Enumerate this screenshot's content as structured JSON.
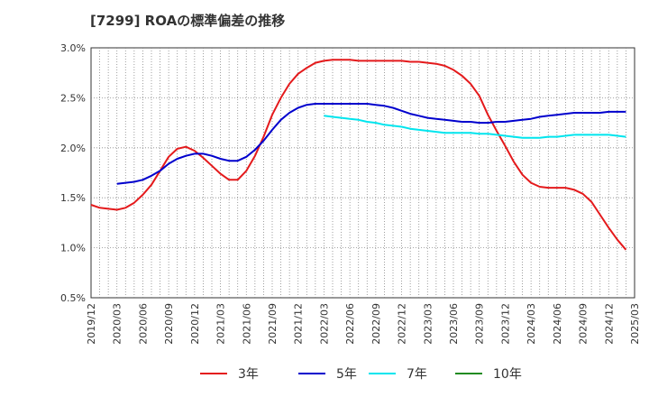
{
  "chart_data": {
    "type": "line",
    "title": "[7299]  ROAの標準偏差の推移",
    "xlabel": "",
    "ylabel": "",
    "y_ticks": [
      "0.5%",
      "1.0%",
      "1.5%",
      "2.0%",
      "2.5%",
      "3.0%"
    ],
    "ylim": [
      0.5,
      3.0
    ],
    "x_ticks": [
      "2019/12",
      "2020/03",
      "2020/06",
      "2020/09",
      "2020/12",
      "2021/03",
      "2021/06",
      "2021/09",
      "2021/12",
      "2022/03",
      "2022/06",
      "2022/09",
      "2022/12",
      "2023/03",
      "2023/06",
      "2023/09",
      "2023/12",
      "2024/03",
      "2024/06",
      "2024/09",
      "2024/12",
      "2025/03"
    ],
    "grid": true,
    "legend_position": "bottom",
    "series": [
      {
        "name": "3年",
        "color": "#e41a1c",
        "points": [
          [
            "2019/12",
            1.43
          ],
          [
            "2020/01",
            1.4
          ],
          [
            "2020/02",
            1.39
          ],
          [
            "2020/03",
            1.38
          ],
          [
            "2020/04",
            1.4
          ],
          [
            "2020/05",
            1.45
          ],
          [
            "2020/06",
            1.53
          ],
          [
            "2020/07",
            1.63
          ],
          [
            "2020/08",
            1.77
          ],
          [
            "2020/09",
            1.91
          ],
          [
            "2020/10",
            1.99
          ],
          [
            "2020/11",
            2.01
          ],
          [
            "2020/12",
            1.97
          ],
          [
            "2021/01",
            1.9
          ],
          [
            "2021/02",
            1.82
          ],
          [
            "2021/03",
            1.74
          ],
          [
            "2021/04",
            1.68
          ],
          [
            "2021/05",
            1.68
          ],
          [
            "2021/06",
            1.77
          ],
          [
            "2021/07",
            1.92
          ],
          [
            "2021/08",
            2.11
          ],
          [
            "2021/09",
            2.33
          ],
          [
            "2021/10",
            2.5
          ],
          [
            "2021/11",
            2.64
          ],
          [
            "2021/12",
            2.74
          ],
          [
            "2022/01",
            2.8
          ],
          [
            "2022/02",
            2.85
          ],
          [
            "2022/03",
            2.87
          ],
          [
            "2022/04",
            2.88
          ],
          [
            "2022/05",
            2.88
          ],
          [
            "2022/06",
            2.88
          ],
          [
            "2022/07",
            2.87
          ],
          [
            "2022/08",
            2.87
          ],
          [
            "2022/09",
            2.87
          ],
          [
            "2022/10",
            2.87
          ],
          [
            "2022/11",
            2.87
          ],
          [
            "2022/12",
            2.87
          ],
          [
            "2023/01",
            2.86
          ],
          [
            "2023/02",
            2.86
          ],
          [
            "2023/03",
            2.85
          ],
          [
            "2023/04",
            2.84
          ],
          [
            "2023/05",
            2.82
          ],
          [
            "2023/06",
            2.78
          ],
          [
            "2023/07",
            2.72
          ],
          [
            "2023/08",
            2.64
          ],
          [
            "2023/09",
            2.52
          ],
          [
            "2023/10",
            2.33
          ],
          [
            "2023/11",
            2.17
          ],
          [
            "2023/12",
            2.02
          ],
          [
            "2024/01",
            1.86
          ],
          [
            "2024/02",
            1.73
          ],
          [
            "2024/03",
            1.65
          ],
          [
            "2024/04",
            1.61
          ],
          [
            "2024/05",
            1.6
          ],
          [
            "2024/06",
            1.6
          ],
          [
            "2024/07",
            1.6
          ],
          [
            "2024/08",
            1.58
          ],
          [
            "2024/09",
            1.54
          ],
          [
            "2024/10",
            1.46
          ],
          [
            "2024/11",
            1.33
          ],
          [
            "2024/12",
            1.2
          ],
          [
            "2025/01",
            1.08
          ],
          [
            "2025/02",
            0.98
          ]
        ]
      },
      {
        "name": "5年",
        "color": "#0000cd",
        "points": [
          [
            "2020/03",
            1.64
          ],
          [
            "2020/04",
            1.65
          ],
          [
            "2020/05",
            1.66
          ],
          [
            "2020/06",
            1.68
          ],
          [
            "2020/07",
            1.72
          ],
          [
            "2020/08",
            1.77
          ],
          [
            "2020/09",
            1.84
          ],
          [
            "2020/10",
            1.89
          ],
          [
            "2020/11",
            1.92
          ],
          [
            "2020/12",
            1.94
          ],
          [
            "2021/01",
            1.94
          ],
          [
            "2021/02",
            1.92
          ],
          [
            "2021/03",
            1.89
          ],
          [
            "2021/04",
            1.87
          ],
          [
            "2021/05",
            1.87
          ],
          [
            "2021/06",
            1.91
          ],
          [
            "2021/07",
            1.98
          ],
          [
            "2021/08",
            2.07
          ],
          [
            "2021/09",
            2.18
          ],
          [
            "2021/10",
            2.28
          ],
          [
            "2021/11",
            2.35
          ],
          [
            "2021/12",
            2.4
          ],
          [
            "2022/01",
            2.43
          ],
          [
            "2022/02",
            2.44
          ],
          [
            "2022/03",
            2.44
          ],
          [
            "2022/04",
            2.44
          ],
          [
            "2022/05",
            2.44
          ],
          [
            "2022/06",
            2.44
          ],
          [
            "2022/07",
            2.44
          ],
          [
            "2022/08",
            2.44
          ],
          [
            "2022/09",
            2.43
          ],
          [
            "2022/10",
            2.42
          ],
          [
            "2022/11",
            2.4
          ],
          [
            "2022/12",
            2.37
          ],
          [
            "2023/01",
            2.34
          ],
          [
            "2023/02",
            2.32
          ],
          [
            "2023/03",
            2.3
          ],
          [
            "2023/04",
            2.29
          ],
          [
            "2023/05",
            2.28
          ],
          [
            "2023/06",
            2.27
          ],
          [
            "2023/07",
            2.26
          ],
          [
            "2023/08",
            2.26
          ],
          [
            "2023/09",
            2.25
          ],
          [
            "2023/10",
            2.25
          ],
          [
            "2023/11",
            2.26
          ],
          [
            "2023/12",
            2.26
          ],
          [
            "2024/01",
            2.27
          ],
          [
            "2024/02",
            2.28
          ],
          [
            "2024/03",
            2.29
          ],
          [
            "2024/04",
            2.31
          ],
          [
            "2024/05",
            2.32
          ],
          [
            "2024/06",
            2.33
          ],
          [
            "2024/07",
            2.34
          ],
          [
            "2024/08",
            2.35
          ],
          [
            "2024/09",
            2.35
          ],
          [
            "2024/10",
            2.35
          ],
          [
            "2024/11",
            2.35
          ],
          [
            "2024/12",
            2.36
          ],
          [
            "2025/01",
            2.36
          ],
          [
            "2025/02",
            2.36
          ]
        ]
      },
      {
        "name": "7年",
        "color": "#00e5ee",
        "points": [
          [
            "2022/03",
            2.32
          ],
          [
            "2022/04",
            2.31
          ],
          [
            "2022/05",
            2.3
          ],
          [
            "2022/06",
            2.29
          ],
          [
            "2022/07",
            2.28
          ],
          [
            "2022/08",
            2.26
          ],
          [
            "2022/09",
            2.25
          ],
          [
            "2022/10",
            2.23
          ],
          [
            "2022/11",
            2.22
          ],
          [
            "2022/12",
            2.21
          ],
          [
            "2023/01",
            2.19
          ],
          [
            "2023/02",
            2.18
          ],
          [
            "2023/03",
            2.17
          ],
          [
            "2023/04",
            2.16
          ],
          [
            "2023/05",
            2.15
          ],
          [
            "2023/06",
            2.15
          ],
          [
            "2023/07",
            2.15
          ],
          [
            "2023/08",
            2.15
          ],
          [
            "2023/09",
            2.14
          ],
          [
            "2023/10",
            2.14
          ],
          [
            "2023/11",
            2.13
          ],
          [
            "2023/12",
            2.12
          ],
          [
            "2024/01",
            2.11
          ],
          [
            "2024/02",
            2.1
          ],
          [
            "2024/03",
            2.1
          ],
          [
            "2024/04",
            2.1
          ],
          [
            "2024/05",
            2.11
          ],
          [
            "2024/06",
            2.11
          ],
          [
            "2024/07",
            2.12
          ],
          [
            "2024/08",
            2.13
          ],
          [
            "2024/09",
            2.13
          ],
          [
            "2024/10",
            2.13
          ],
          [
            "2024/11",
            2.13
          ],
          [
            "2024/12",
            2.13
          ],
          [
            "2025/01",
            2.12
          ],
          [
            "2025/02",
            2.11
          ]
        ]
      },
      {
        "name": "10年",
        "color": "#228b22",
        "points": []
      }
    ]
  }
}
